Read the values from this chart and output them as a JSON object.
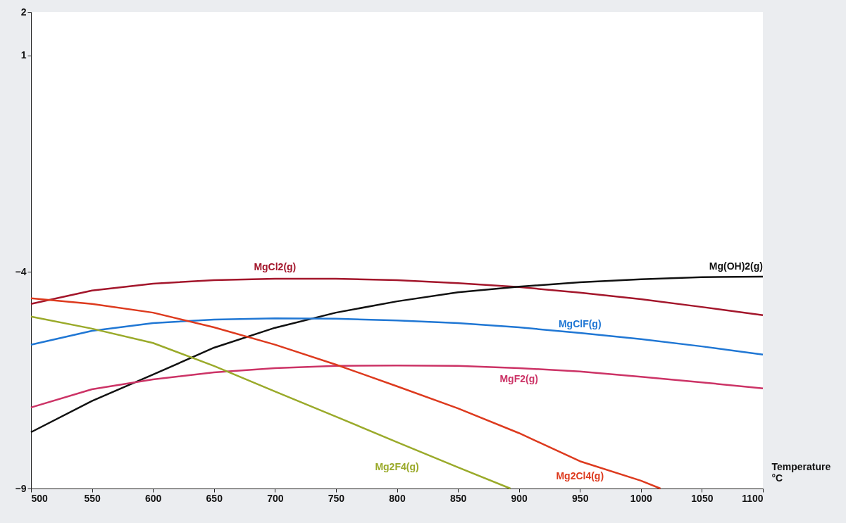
{
  "chart_data": {
    "type": "line",
    "xlabel": "Temperature\n°C",
    "x": [
      500,
      550,
      600,
      650,
      700,
      750,
      800,
      850,
      900,
      950,
      1000,
      1050,
      1100
    ],
    "xlim": [
      500,
      1100
    ],
    "xticks": [
      500,
      550,
      600,
      650,
      700,
      750,
      800,
      850,
      900,
      950,
      1000,
      1050,
      1100
    ],
    "ylim": [
      -9,
      2
    ],
    "yticks": [
      2,
      1,
      -4,
      -9
    ],
    "grid": false,
    "marker": "none",
    "line_style": "solid",
    "series": [
      {
        "name": "MgCl2(g)",
        "color": "#a3162b",
        "values": [
          -4.74,
          -4.43,
          -4.27,
          -4.19,
          -4.16,
          -4.16,
          -4.19,
          -4.26,
          -4.35,
          -4.48,
          -4.63,
          -4.81,
          -5.0
        ]
      },
      {
        "name": "Mg(OH)2(g)",
        "color": "#111111",
        "values": [
          -7.7,
          -6.98,
          -6.37,
          -5.75,
          -5.29,
          -4.94,
          -4.68,
          -4.47,
          -4.34,
          -4.24,
          -4.17,
          -4.12,
          -4.11
        ]
      },
      {
        "name": "MgClF(g)",
        "color": "#2077d4",
        "values": [
          -5.68,
          -5.36,
          -5.18,
          -5.1,
          -5.07,
          -5.08,
          -5.12,
          -5.18,
          -5.28,
          -5.41,
          -5.55,
          -5.72,
          -5.91
        ]
      },
      {
        "name": "MgF2(g)",
        "color": "#cc3366",
        "values": [
          -7.13,
          -6.71,
          -6.48,
          -6.32,
          -6.22,
          -6.17,
          -6.16,
          -6.17,
          -6.22,
          -6.3,
          -6.42,
          -6.55,
          -6.69
        ]
      },
      {
        "name": "Mg2Cl4(g)",
        "color": "#dd3a1e",
        "x": [
          500,
          550,
          600,
          650,
          700,
          750,
          800,
          850,
          900,
          950,
          1000,
          1016
        ],
        "values": [
          -4.61,
          -4.74,
          -4.94,
          -5.28,
          -5.68,
          -6.14,
          -6.64,
          -7.15,
          -7.72,
          -8.37,
          -8.82,
          -9.0
        ]
      },
      {
        "name": "Mg2F4(g)",
        "color": "#9aaa2a",
        "x": [
          500,
          550,
          600,
          650,
          700,
          750,
          800,
          850,
          893
        ],
        "values": [
          -5.03,
          -5.31,
          -5.64,
          -6.17,
          -6.76,
          -7.34,
          -7.93,
          -8.51,
          -9.0
        ]
      }
    ]
  }
}
